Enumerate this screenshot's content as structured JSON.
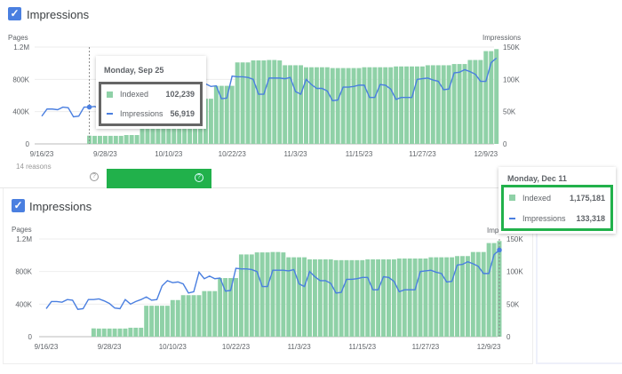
{
  "top_panel": {
    "checkbox_label": "Impressions",
    "left_axis_title": "Pages",
    "right_axis_title": "Impressions",
    "tooltip": {
      "date": "Monday, Sep 25",
      "indexed_label": "Indexed",
      "indexed_value": "102,239",
      "impressions_label": "Impressions",
      "impressions_value": "56,919"
    }
  },
  "strip": {
    "reasons_text": "14 reasons",
    "help_icon": "question-circle-icon"
  },
  "bottom_panel": {
    "checkbox_label": "Impressions",
    "left_axis_title": "Pages",
    "right_axis_title": "Imp",
    "tooltip": {
      "date": "Monday, Dec 11",
      "indexed_label": "Indexed",
      "indexed_value": "1,175,181",
      "impressions_label": "Impressions",
      "impressions_value": "133,318"
    }
  },
  "colors": {
    "indexed": "#8fd1a7",
    "impressions": "#4a7fe0",
    "highlight_green": "#21b14b",
    "highlight_gray": "#666666",
    "checkbox": "#4a7fe0"
  },
  "chart_data": {
    "type": "bar+line",
    "start_date": "9/16/23",
    "end_date": "12/11/23",
    "x_tick_labels": [
      "9/16/23",
      "9/28/23",
      "10/10/23",
      "10/22/23",
      "11/3/23",
      "11/15/23",
      "11/27/23",
      "12/9/23"
    ],
    "left_axis": {
      "title": "Pages",
      "ticks": [
        "0",
        "400K",
        "800K",
        "1.2M"
      ],
      "range": [
        0,
        1200000
      ]
    },
    "right_axis": {
      "title": "Impressions",
      "ticks": [
        "0",
        "50K",
        "100K",
        "150K"
      ],
      "range": [
        0,
        150000
      ]
    },
    "series": [
      {
        "name": "Indexed",
        "type": "bar",
        "values_k": [
          0,
          0,
          0,
          0,
          0,
          0,
          0,
          0,
          0,
          102,
          100,
          100,
          100,
          100,
          100,
          100,
          110,
          110,
          110,
          380,
          380,
          380,
          380,
          380,
          450,
          450,
          510,
          510,
          510,
          510,
          560,
          560,
          560,
          720,
          720,
          720,
          720,
          1010,
          1010,
          1010,
          1035,
          1035,
          1035,
          1040,
          1040,
          1035,
          975,
          975,
          975,
          975,
          950,
          950,
          950,
          950,
          950,
          940,
          940,
          940,
          940,
          940,
          940,
          950,
          950,
          950,
          950,
          950,
          950,
          960,
          960,
          960,
          960,
          960,
          960,
          975,
          975,
          975,
          975,
          975,
          990,
          990,
          990,
          1040,
          1040,
          1040,
          1150,
          1150,
          1175
        ]
      },
      {
        "name": "Impressions",
        "type": "line",
        "values_k": [
          43,
          54,
          54,
          53,
          57,
          56,
          42,
          43,
          57,
          57,
          58,
          55,
          51,
          44,
          43,
          57,
          50,
          54,
          57,
          61,
          56,
          57,
          78,
          86,
          83,
          84,
          81,
          67,
          69,
          99,
          89,
          93,
          89,
          90,
          70,
          71,
          105,
          104,
          104,
          103,
          100,
          77,
          77,
          102,
          102,
          102,
          101,
          103,
          81,
          77,
          100,
          92,
          86,
          86,
          82,
          67,
          68,
          88,
          88,
          89,
          91,
          91,
          72,
          72,
          92,
          91,
          85,
          69,
          72,
          72,
          72,
          100,
          101,
          102,
          99,
          97,
          84,
          85,
          110,
          111,
          115,
          112,
          108,
          97,
          97,
          126,
          133
        ]
      }
    ]
  }
}
